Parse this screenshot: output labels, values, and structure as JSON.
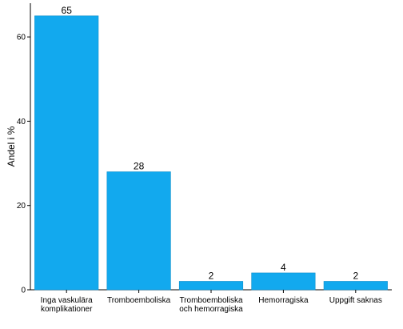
{
  "chart_data": {
    "type": "bar",
    "categories": [
      [
        "Inga vaskulära",
        "komplikationer"
      ],
      [
        "Tromboemboliska"
      ],
      [
        "Tromboemboliska",
        "och hemorragiska"
      ],
      [
        "Hemorragiska"
      ],
      [
        "Uppgift saknas"
      ]
    ],
    "values": [
      65,
      28,
      2,
      4,
      2
    ],
    "data_labels": [
      "65",
      "28",
      "2",
      "4",
      "2"
    ],
    "ylabel": "Andel i %",
    "xlabel": "",
    "ylim": [
      0,
      68
    ],
    "yticks": [
      0,
      20,
      40,
      60
    ],
    "grid": false,
    "colors": {
      "bar": "#12A9EE",
      "bar_edge": "#0E8FCB",
      "axis": "#000000"
    }
  }
}
